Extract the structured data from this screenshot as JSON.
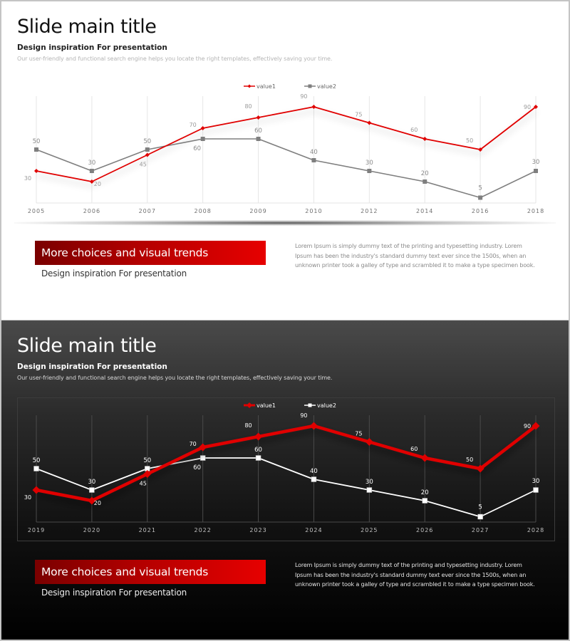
{
  "slides": [
    {
      "theme": "light",
      "title": "Slide main title",
      "subtitle": "Design inspiration For presentation",
      "description": "Our user-friendly and functional search engine helps you locate the right templates, effectively saving your time.",
      "banner": {
        "heading": "More choices and visual trends",
        "subheading": "Design inspiration For presentation"
      },
      "body_text": "Lorem Ipsum is simply dummy text of the printing and typesetting industry. Lorem Ipsum has been the industry's standard dummy text ever since the 1500s, when an unknown printer took a galley of type and scrambled it to make a type specimen book."
    },
    {
      "theme": "dark",
      "title": "Slide main title",
      "subtitle": "Design inspiration For presentation",
      "description": "Our user-friendly and functional search engine helps you locate the right templates, effectively saving your time.",
      "banner": {
        "heading": "More choices and visual trends",
        "subheading": "Design inspiration For presentation"
      },
      "body_text": "Lorem Ipsum is simply dummy text of the printing and typesetting industry. Lorem Ipsum has been the industry's standard dummy text ever since the 1500s, when an unknown printer took a galley of type and scrambled it to make a type specimen book."
    }
  ],
  "colors": {
    "accent_red": "#e00000",
    "banner_gradient_start": "#7a0000",
    "banner_gradient_end": "#e60000",
    "light_value2": "#7f7f7f",
    "dark_value2": "#ffffff"
  },
  "chart_data": [
    {
      "type": "line",
      "title": "",
      "xlabel": "",
      "ylabel": "",
      "categories": [
        "2005",
        "2006",
        "2007",
        "2008",
        "2009",
        "2010",
        "2012",
        "2014",
        "2016",
        "2018"
      ],
      "series": [
        {
          "name": "value1",
          "color": "#e00000",
          "marker": "diamond",
          "values": [
            30,
            20,
            45,
            70,
            80,
            90,
            75,
            60,
            50,
            90
          ]
        },
        {
          "name": "value2",
          "color": "#7f7f7f",
          "marker": "square",
          "values": [
            50,
            30,
            50,
            60,
            60,
            40,
            30,
            20,
            5,
            30
          ]
        }
      ],
      "ylim": [
        0,
        100
      ],
      "grid": "vertical",
      "legend_position": "top",
      "data_labels": true
    },
    {
      "type": "line",
      "title": "",
      "xlabel": "",
      "ylabel": "",
      "categories": [
        "2019",
        "2020",
        "2021",
        "2022",
        "2023",
        "2024",
        "2025",
        "2026",
        "2027",
        "2028"
      ],
      "series": [
        {
          "name": "value1",
          "color": "#e00000",
          "marker": "diamond",
          "values": [
            30,
            20,
            45,
            70,
            80,
            90,
            75,
            60,
            50,
            90
          ]
        },
        {
          "name": "value2",
          "color": "#ffffff",
          "marker": "square",
          "values": [
            50,
            30,
            50,
            60,
            60,
            40,
            30,
            20,
            5,
            30
          ]
        }
      ],
      "ylim": [
        0,
        100
      ],
      "grid": "vertical",
      "legend_position": "top",
      "data_labels": true
    }
  ]
}
